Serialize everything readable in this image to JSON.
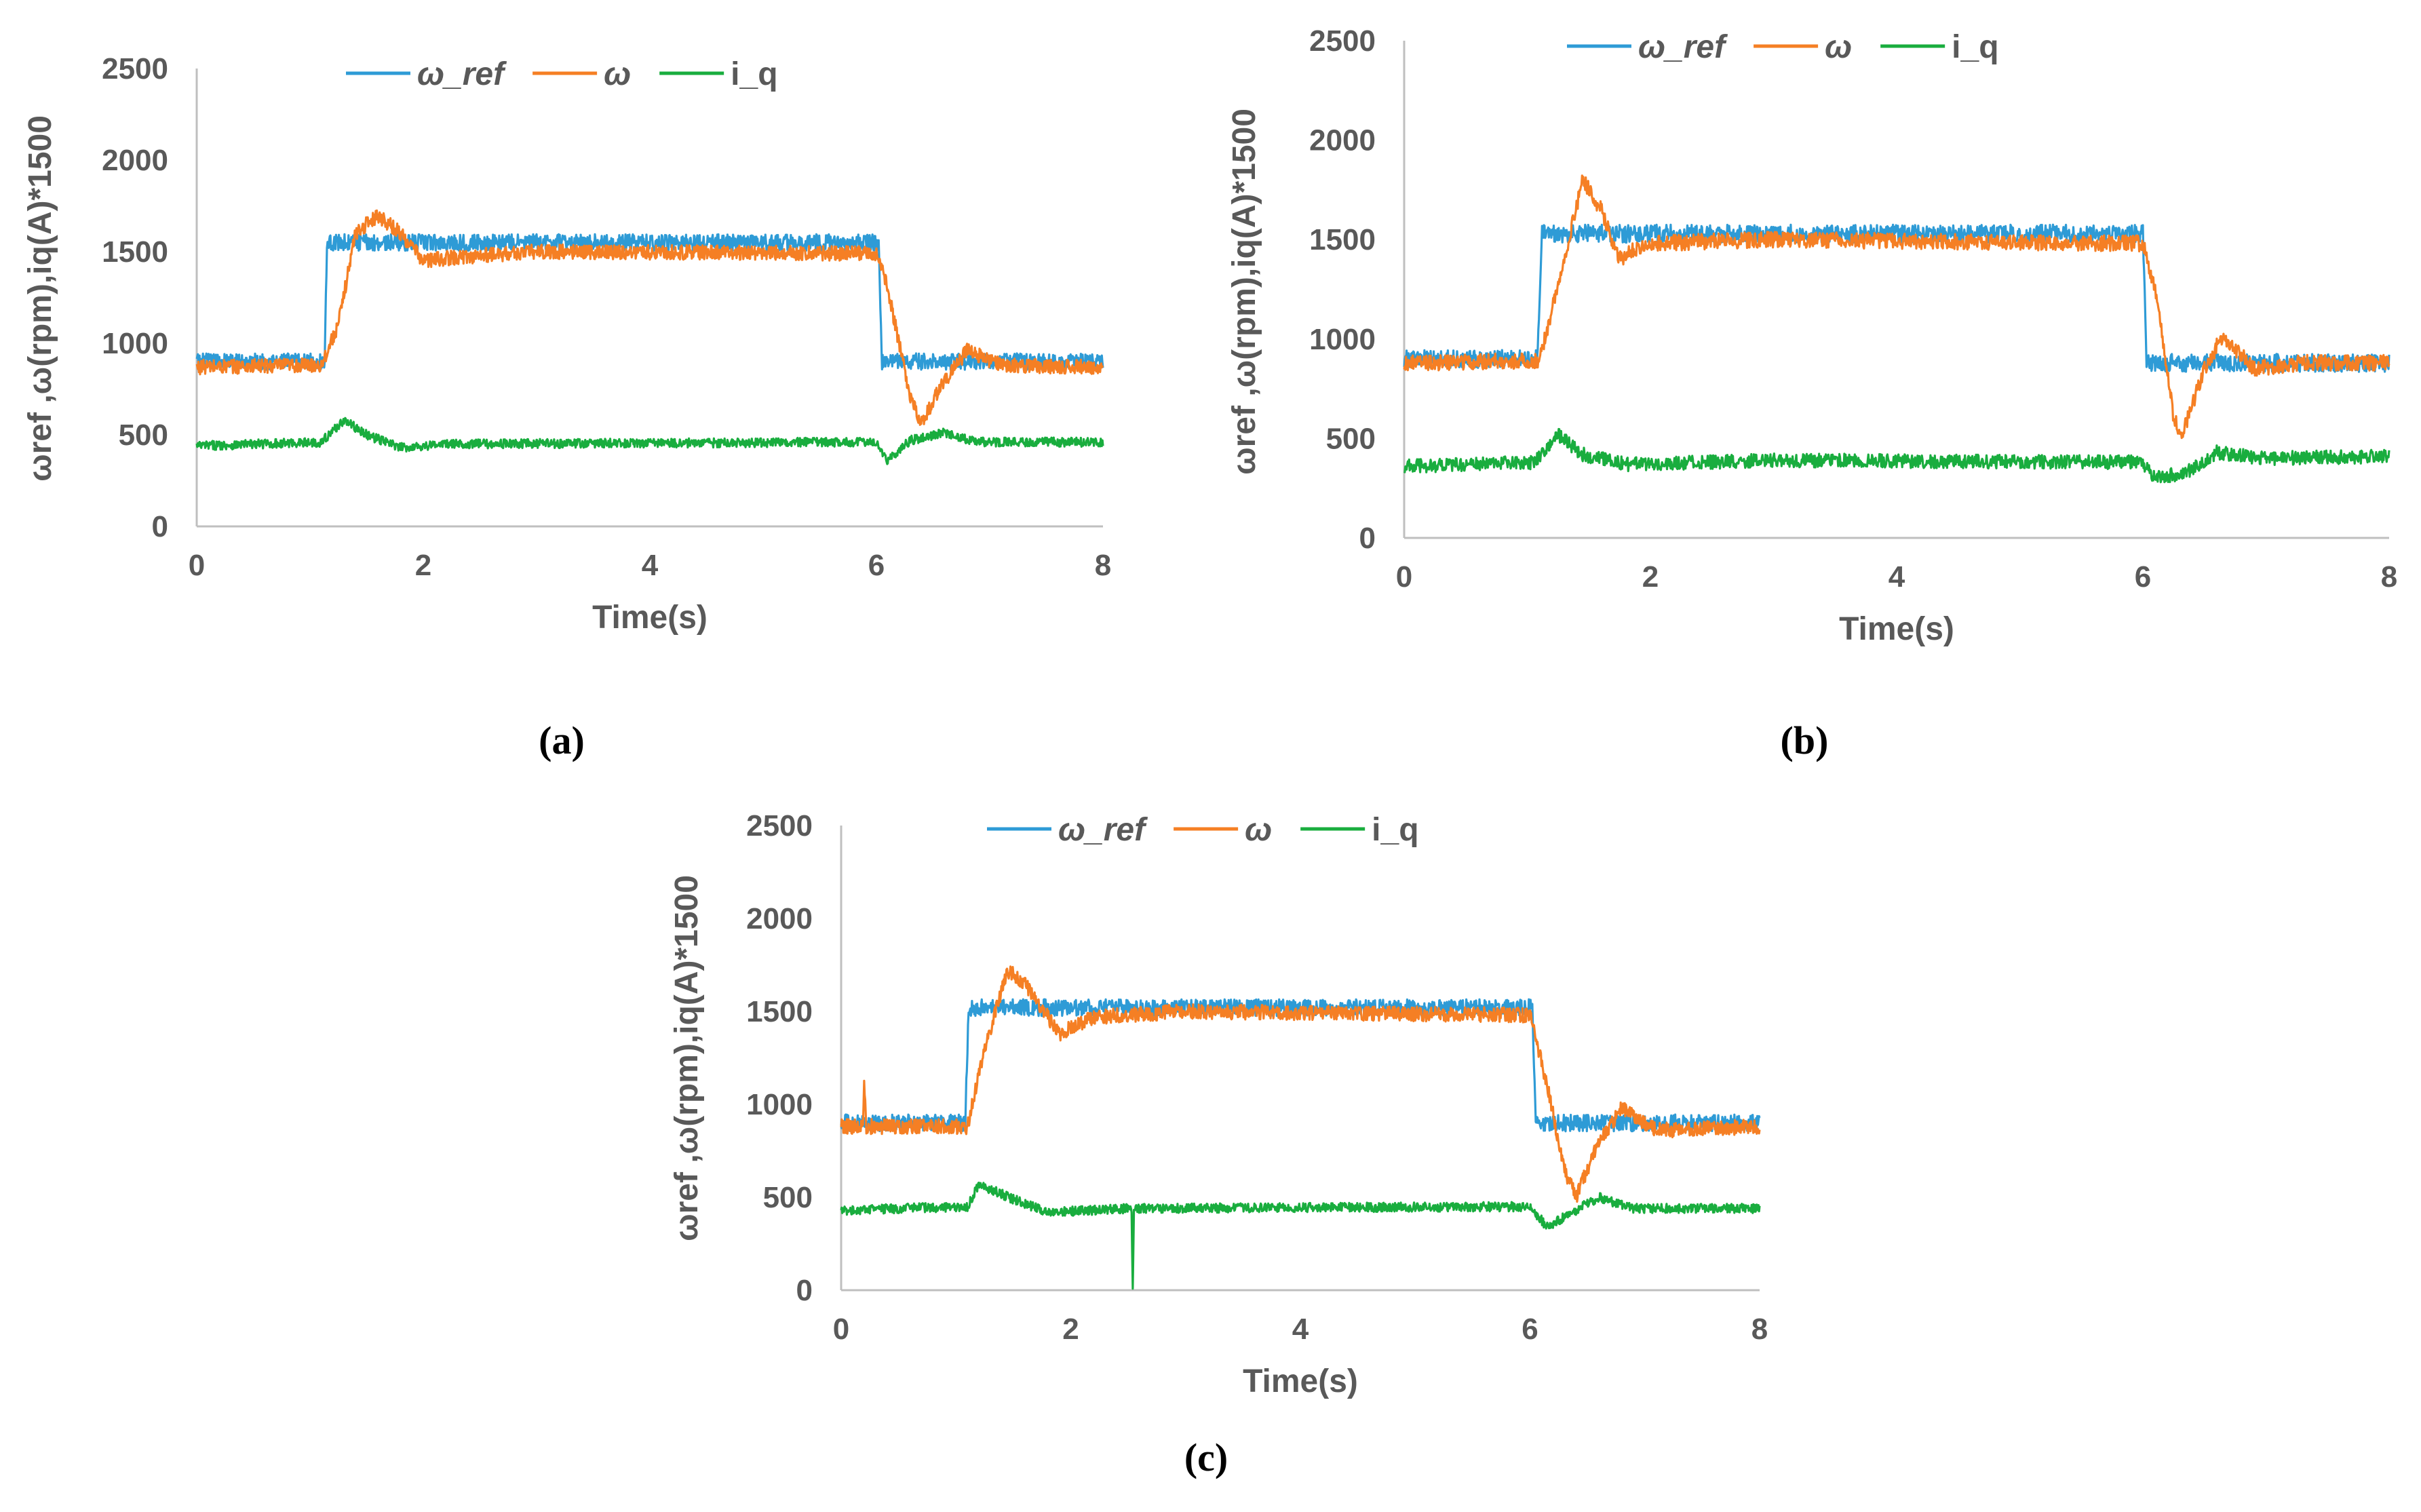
{
  "colors": {
    "omega_ref": "#2E9BD6",
    "omega": "#F57F24",
    "i_q": "#19AD3E",
    "axis": "#BFBFBF",
    "text": "#595959"
  },
  "chart_data": [
    {
      "id": "a",
      "type": "line",
      "caption": "(a)",
      "xlabel": "Time(s)",
      "ylabel": "ωref ,ω(rpm),iq(A)*1500",
      "xlim": [
        0,
        8
      ],
      "ylim": [
        0,
        2500
      ],
      "x_ticks": [
        "0",
        "2",
        "4",
        "6",
        "8"
      ],
      "y_ticks": [
        "0",
        "500",
        "1000",
        "1500",
        "2000",
        "2500"
      ],
      "legend": [
        "ω_ref",
        "ω",
        "i_q"
      ],
      "series": [
        {
          "name": "ω_ref",
          "key": "omega_ref",
          "noise": 45,
          "points": [
            [
              0,
              900
            ],
            [
              1.13,
              900
            ],
            [
              1.15,
              1550
            ],
            [
              6.02,
              1550
            ],
            [
              6.05,
              900
            ],
            [
              8,
              900
            ]
          ]
        },
        {
          "name": "ω",
          "key": "omega",
          "noise": 40,
          "points": [
            [
              0,
              870
            ],
            [
              1.1,
              880
            ],
            [
              1.25,
              1100
            ],
            [
              1.4,
              1600
            ],
            [
              1.6,
              1700
            ],
            [
              1.8,
              1600
            ],
            [
              2.0,
              1450
            ],
            [
              2.3,
              1470
            ],
            [
              3,
              1500
            ],
            [
              6.0,
              1490
            ],
            [
              6.1,
              1300
            ],
            [
              6.3,
              700
            ],
            [
              6.4,
              560
            ],
            [
              6.55,
              750
            ],
            [
              6.8,
              960
            ],
            [
              7.1,
              880
            ],
            [
              8,
              870
            ]
          ]
        },
        {
          "name": "i_q",
          "key": "i_q",
          "noise": 25,
          "points": [
            [
              0,
              440
            ],
            [
              1.1,
              460
            ],
            [
              1.3,
              580
            ],
            [
              1.5,
              500
            ],
            [
              1.8,
              430
            ],
            [
              2.2,
              450
            ],
            [
              6.0,
              460
            ],
            [
              6.1,
              360
            ],
            [
              6.3,
              470
            ],
            [
              6.6,
              510
            ],
            [
              6.9,
              460
            ],
            [
              8,
              460
            ]
          ]
        }
      ]
    },
    {
      "id": "b",
      "type": "line",
      "caption": "(b)",
      "xlabel": "Time(s)",
      "ylabel": "ωref ,ω(rpm),iq(A)*1500",
      "xlim": [
        0,
        8
      ],
      "ylim": [
        0,
        2500
      ],
      "x_ticks": [
        "0",
        "2",
        "4",
        "6",
        "8"
      ],
      "y_ticks": [
        "0",
        "500",
        "1000",
        "1500",
        "2000",
        "2500"
      ],
      "legend": [
        "ω_ref",
        "ω",
        "i_q"
      ],
      "series": [
        {
          "name": "ω_ref",
          "key": "omega_ref",
          "noise": 45,
          "points": [
            [
              0,
              900
            ],
            [
              1.08,
              900
            ],
            [
              1.12,
              1530
            ],
            [
              6.0,
              1530
            ],
            [
              6.03,
              880
            ],
            [
              8,
              880
            ]
          ]
        },
        {
          "name": "ω",
          "key": "omega",
          "noise": 40,
          "points": [
            [
              0,
              880
            ],
            [
              1.1,
              890
            ],
            [
              1.3,
              1400
            ],
            [
              1.45,
              1800
            ],
            [
              1.6,
              1650
            ],
            [
              1.75,
              1400
            ],
            [
              1.95,
              1480
            ],
            [
              3,
              1500
            ],
            [
              6.0,
              1480
            ],
            [
              6.12,
              1200
            ],
            [
              6.25,
              600
            ],
            [
              6.32,
              520
            ],
            [
              6.5,
              850
            ],
            [
              6.65,
              1020
            ],
            [
              6.9,
              850
            ],
            [
              7.3,
              880
            ],
            [
              8,
              880
            ]
          ]
        },
        {
          "name": "i_q",
          "key": "i_q",
          "noise": 35,
          "points": [
            [
              0,
              360
            ],
            [
              1.05,
              380
            ],
            [
              1.25,
              520
            ],
            [
              1.45,
              420
            ],
            [
              1.8,
              370
            ],
            [
              3,
              390
            ],
            [
              6.0,
              380
            ],
            [
              6.1,
              300
            ],
            [
              6.35,
              330
            ],
            [
              6.6,
              430
            ],
            [
              7,
              400
            ],
            [
              8,
              410
            ]
          ]
        }
      ]
    },
    {
      "id": "c",
      "type": "line",
      "caption": "(c)",
      "xlabel": "Time(s)",
      "ylabel": "ωref ,ω(rpm),iq(A)*1500",
      "xlim": [
        0,
        8
      ],
      "ylim": [
        0,
        2500
      ],
      "x_ticks": [
        "0",
        "2",
        "4",
        "6",
        "8"
      ],
      "y_ticks": [
        "0",
        "500",
        "1000",
        "1500",
        "2000",
        "2500"
      ],
      "legend": [
        "ω_ref",
        "ω",
        "i_q"
      ],
      "series": [
        {
          "name": "ω_ref",
          "key": "omega_ref",
          "noise": 45,
          "points": [
            [
              0,
              900
            ],
            [
              1.08,
              900
            ],
            [
              1.11,
              1520
            ],
            [
              6.02,
              1520
            ],
            [
              6.05,
              900
            ],
            [
              8,
              900
            ]
          ]
        },
        {
          "name": "ω",
          "key": "omega",
          "noise": 40,
          "points": [
            [
              0,
              880
            ],
            [
              0.19,
              880
            ],
            [
              0.2,
              1100
            ],
            [
              0.22,
              880
            ],
            [
              1.1,
              880
            ],
            [
              1.25,
              1300
            ],
            [
              1.45,
              1720
            ],
            [
              1.6,
              1650
            ],
            [
              1.9,
              1380
            ],
            [
              2.2,
              1470
            ],
            [
              3,
              1500
            ],
            [
              6.0,
              1480
            ],
            [
              6.15,
              1100
            ],
            [
              6.3,
              650
            ],
            [
              6.4,
              500
            ],
            [
              6.6,
              800
            ],
            [
              6.8,
              980
            ],
            [
              7.1,
              860
            ],
            [
              8,
              880
            ]
          ]
        },
        {
          "name": "i_q",
          "key": "i_q",
          "noise": 25,
          "points": [
            [
              0,
              430
            ],
            [
              1.1,
              450
            ],
            [
              1.2,
              570
            ],
            [
              1.5,
              490
            ],
            [
              1.8,
              420
            ],
            [
              2.53,
              440
            ],
            [
              2.54,
              0
            ],
            [
              2.55,
              440
            ],
            [
              6.0,
              450
            ],
            [
              6.15,
              340
            ],
            [
              6.4,
              430
            ],
            [
              6.6,
              500
            ],
            [
              6.9,
              440
            ],
            [
              8,
              440
            ]
          ]
        }
      ]
    }
  ]
}
